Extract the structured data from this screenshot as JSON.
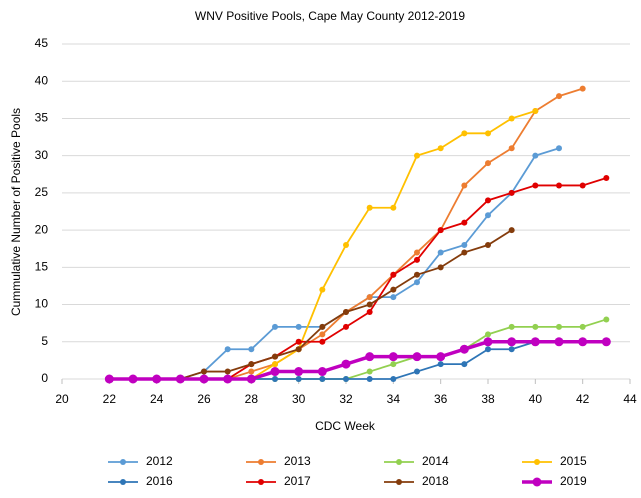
{
  "chart_data": {
    "type": "line",
    "title": "WNV Positive Pools, Cape May County 2012-2019",
    "xlabel": "CDC Week",
    "ylabel": "Cummulative Number of Positive Pools",
    "xlim": [
      20,
      44
    ],
    "xticks": [
      20,
      22,
      24,
      26,
      28,
      30,
      32,
      34,
      36,
      38,
      40,
      42,
      44
    ],
    "ylim": [
      0,
      45
    ],
    "yticks": [
      0,
      5,
      10,
      15,
      20,
      25,
      30,
      35,
      40,
      45
    ],
    "grid": true,
    "series": [
      {
        "name": "2012",
        "color": "#5b9bd5",
        "x": [
          22,
          23,
          24,
          25,
          26,
          27,
          28,
          29,
          30,
          31,
          32,
          33,
          34,
          35,
          36,
          37,
          38,
          39,
          40,
          41
        ],
        "values": [
          0,
          0,
          0,
          0,
          1,
          4,
          4,
          7,
          7,
          7,
          9,
          11,
          11,
          13,
          17,
          18,
          22,
          25,
          30,
          31
        ]
      },
      {
        "name": "2013",
        "color": "#ed7d31",
        "x": [
          22,
          23,
          24,
          25,
          26,
          27,
          28,
          29,
          30,
          31,
          32,
          33,
          34,
          35,
          36,
          37,
          38,
          39,
          40,
          41,
          42
        ],
        "values": [
          0,
          0,
          0,
          0,
          0,
          0,
          1,
          2,
          4,
          6,
          9,
          11,
          14,
          17,
          20,
          26,
          29,
          31,
          36,
          38,
          39
        ]
      },
      {
        "name": "2014",
        "color": "#92d050",
        "x": [
          22,
          23,
          24,
          25,
          26,
          27,
          28,
          29,
          30,
          31,
          32,
          33,
          34,
          35,
          36,
          37,
          38,
          39,
          40,
          41,
          42,
          43
        ],
        "values": [
          0,
          0,
          0,
          0,
          0,
          0,
          0,
          0,
          0,
          0,
          0,
          1,
          2,
          3,
          3,
          4,
          6,
          7,
          7,
          7,
          7,
          8
        ]
      },
      {
        "name": "2015",
        "color": "#ffc000",
        "x": [
          22,
          23,
          24,
          25,
          26,
          27,
          28,
          29,
          30,
          31,
          32,
          33,
          34,
          35,
          36,
          37,
          38,
          39,
          40
        ],
        "values": [
          0,
          0,
          0,
          0,
          0,
          0,
          0,
          2,
          4,
          12,
          18,
          23,
          23,
          30,
          31,
          33,
          33,
          35,
          36
        ]
      },
      {
        "name": "2016",
        "color": "#2e75b6",
        "x": [
          22,
          23,
          24,
          25,
          26,
          27,
          28,
          29,
          30,
          31,
          32,
          33,
          34,
          35,
          36,
          37,
          38,
          39,
          40,
          41,
          42,
          43
        ],
        "values": [
          0,
          0,
          0,
          0,
          0,
          0,
          0,
          0,
          0,
          0,
          0,
          0,
          0,
          1,
          2,
          2,
          4,
          4,
          5,
          5,
          5,
          5
        ]
      },
      {
        "name": "2017",
        "color": "#e00000",
        "x": [
          22,
          23,
          24,
          25,
          26,
          27,
          28,
          29,
          30,
          31,
          32,
          33,
          34,
          35,
          36,
          37,
          38,
          39,
          40,
          41,
          42,
          43
        ],
        "values": [
          0,
          0,
          0,
          0,
          0,
          0,
          2,
          3,
          5,
          5,
          7,
          9,
          14,
          16,
          20,
          21,
          24,
          25,
          26,
          26,
          26,
          27
        ]
      },
      {
        "name": "2018",
        "color": "#843c0c",
        "x": [
          22,
          23,
          24,
          25,
          26,
          27,
          28,
          29,
          30,
          31,
          32,
          33,
          34,
          35,
          36,
          37,
          38,
          39
        ],
        "values": [
          0,
          0,
          0,
          0,
          1,
          1,
          2,
          3,
          4,
          7,
          9,
          10,
          12,
          14,
          15,
          17,
          18,
          20
        ]
      },
      {
        "name": "2019",
        "color": "#c000c0",
        "x": [
          22,
          23,
          24,
          25,
          26,
          27,
          28,
          29,
          30,
          31,
          32,
          33,
          34,
          35,
          36,
          37,
          38,
          39,
          40,
          41,
          42,
          43
        ],
        "values": [
          0,
          0,
          0,
          0,
          0,
          0,
          0,
          1,
          1,
          1,
          2,
          3,
          3,
          3,
          3,
          4,
          5,
          5,
          5,
          5,
          5,
          5
        ]
      }
    ]
  }
}
